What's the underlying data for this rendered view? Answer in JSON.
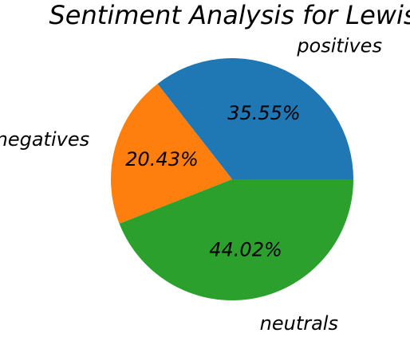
{
  "chart_data": {
    "type": "pie",
    "title": "Sentiment Analysis for Lewis",
    "categories": [
      "positives",
      "negatives",
      "neutrals"
    ],
    "values": [
      35.55,
      20.43,
      44.02
    ],
    "value_labels": [
      "35.55%",
      "20.43%",
      "44.02%"
    ],
    "colors": [
      "#1f77b4",
      "#ff7f0e",
      "#2ca02c"
    ],
    "start_angle_deg": 0,
    "direction": "counterclockwise",
    "legend": "none"
  }
}
